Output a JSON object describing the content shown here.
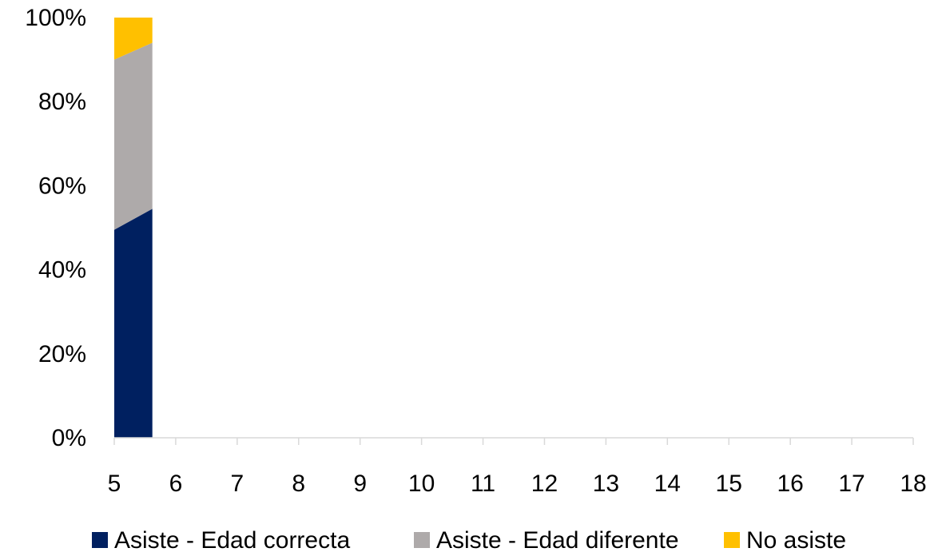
{
  "chart_data": {
    "type": "area",
    "stacked": "percent",
    "x": [
      5,
      6,
      7,
      8,
      9,
      10,
      11,
      12,
      13,
      14,
      15,
      16,
      17,
      18
    ],
    "x_tick_labels": [
      "5",
      "6",
      "7",
      "8",
      "9",
      "10",
      "11",
      "12",
      "13",
      "14",
      "15",
      "16",
      "17",
      "18"
    ],
    "y_tick_labels": [
      "0%",
      "20%",
      "40%",
      "60%",
      "80%",
      "100%"
    ],
    "ylim": [
      0,
      100
    ],
    "xlim": [
      5,
      18
    ],
    "grid": false,
    "legend_position": "bottom",
    "series": [
      {
        "name": "Asiste - Edad correcta",
        "color": "#002060",
        "points": [
          [
            5,
            49.5
          ],
          [
            5.62,
            54.5
          ]
        ]
      },
      {
        "name": "Asiste - Edad diferente",
        "color": "#aeaaaa",
        "points": [
          [
            5,
            40.5
          ],
          [
            5.62,
            39.5
          ]
        ]
      },
      {
        "name": "No asiste",
        "color": "#ffc000",
        "points": [
          [
            5,
            10.0
          ],
          [
            5.62,
            6.0
          ]
        ]
      }
    ]
  }
}
